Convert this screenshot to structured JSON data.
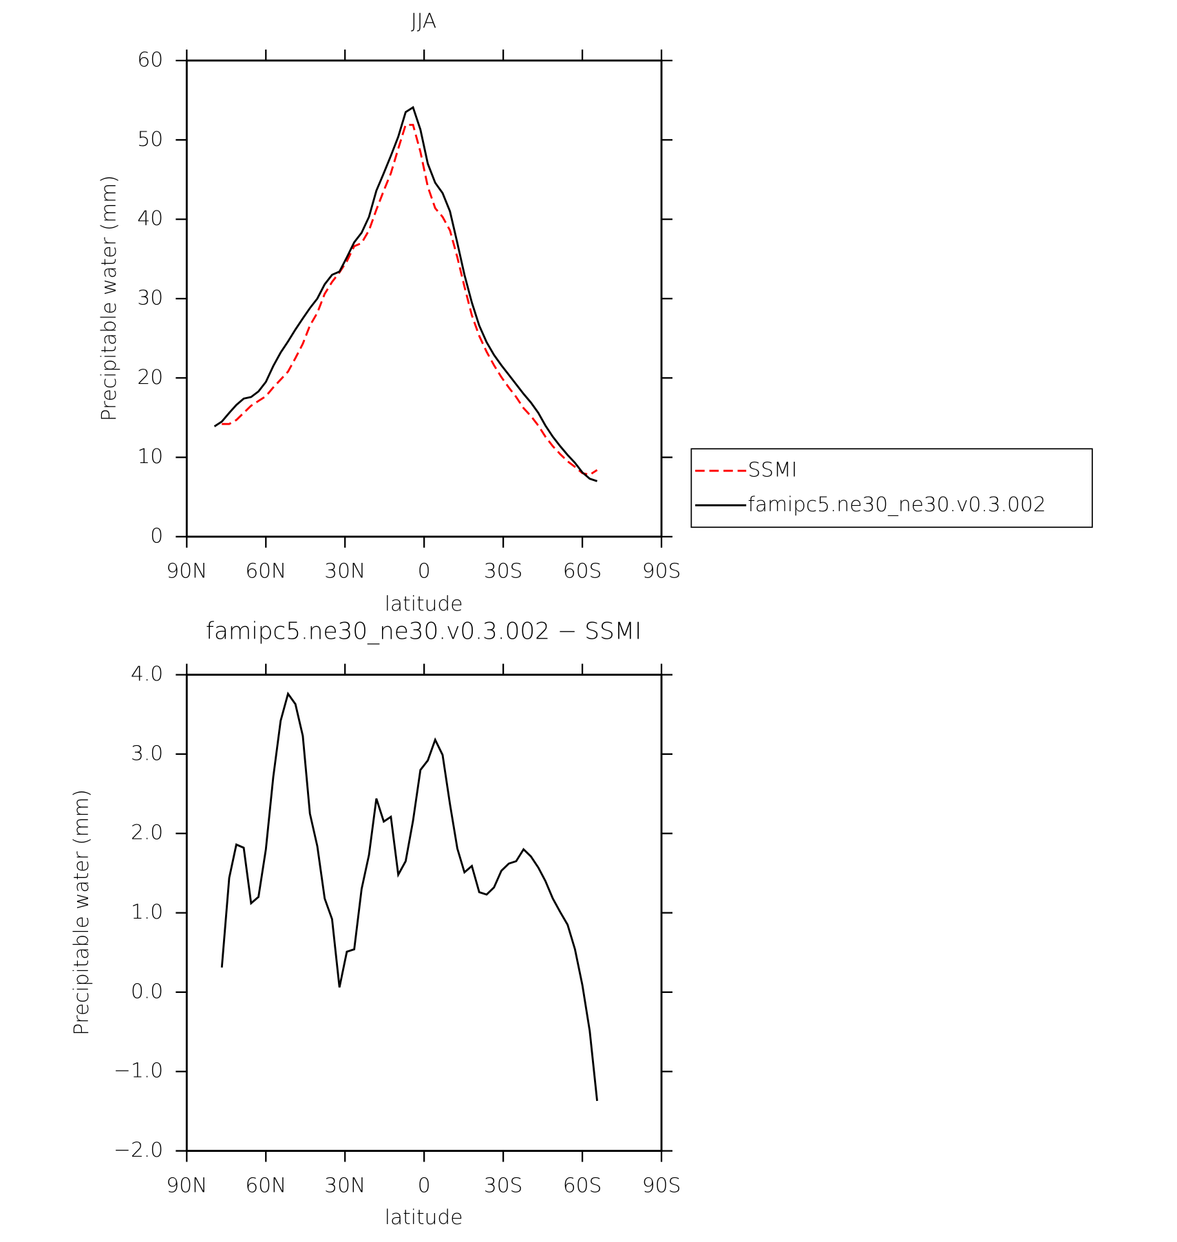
{
  "chart_data": [
    {
      "type": "line",
      "title": "JJA",
      "xlabel": "latitude",
      "ylabel": "Precipitable water (mm)",
      "x": [
        79.5,
        76.7,
        73.9,
        71.2,
        68.4,
        65.6,
        62.8,
        60.0,
        57.2,
        54.4,
        51.6,
        48.8,
        46.0,
        43.3,
        40.5,
        37.7,
        34.9,
        32.1,
        29.3,
        26.5,
        23.7,
        20.9,
        18.1,
        15.3,
        12.6,
        9.8,
        7.0,
        4.2,
        1.4,
        -1.4,
        -4.2,
        -7.0,
        -9.8,
        -12.6,
        -15.3,
        -18.1,
        -20.9,
        -23.7,
        -26.5,
        -29.3,
        -32.1,
        -34.9,
        -37.7,
        -40.5,
        -43.3,
        -46.0,
        -48.8,
        -51.6,
        -54.4,
        -57.2,
        -60.0,
        -62.8,
        -65.6
      ],
      "xlim": [
        90,
        -90
      ],
      "xticks": [
        {
          "value": 90,
          "label": "90N"
        },
        {
          "value": 60,
          "label": "60N"
        },
        {
          "value": 30,
          "label": "30N"
        },
        0,
        {
          "value": -30,
          "label": "30S"
        },
        {
          "value": -60,
          "label": "60S"
        },
        {
          "value": -90,
          "label": "90S"
        }
      ],
      "ylim": [
        0,
        60
      ],
      "yticks": [
        0,
        10,
        20,
        30,
        40,
        50,
        60
      ],
      "legend": "right",
      "series": [
        {
          "name": "SSMI",
          "color": "#ff0000",
          "linestyle": "dashed",
          "values": [
            null,
            14.2,
            14.2,
            14.7,
            15.6,
            16.5,
            17.1,
            17.7,
            18.8,
            19.8,
            20.8,
            22.5,
            24.3,
            26.6,
            28.2,
            30.6,
            32.1,
            33.3,
            34.7,
            36.6,
            37.0,
            38.6,
            41.2,
            43.6,
            45.8,
            48.9,
            51.9,
            51.9,
            48.5,
            44.1,
            41.4,
            40.3,
            38.6,
            35.2,
            31.5,
            27.9,
            25.3,
            23.3,
            21.6,
            20.1,
            18.8,
            17.6,
            16.2,
            15.2,
            14.0,
            12.6,
            11.4,
            10.4,
            9.5,
            8.8,
            8.0,
            7.8,
            8.4
          ]
        },
        {
          "name": "famipc5.ne30_ne30.v0.3.002",
          "color": "#000000",
          "linestyle": "solid",
          "values": [
            13.9,
            14.5,
            15.6,
            16.6,
            17.4,
            17.6,
            18.3,
            19.5,
            21.5,
            23.2,
            24.6,
            26.1,
            27.5,
            28.8,
            30.0,
            31.8,
            33.0,
            33.4,
            35.2,
            37.1,
            38.3,
            40.3,
            43.6,
            45.8,
            48.0,
            50.4,
            53.5,
            54.1,
            51.3,
            47.0,
            44.6,
            43.3,
            41.0,
            37.0,
            33.0,
            29.5,
            26.6,
            24.5,
            22.9,
            21.6,
            20.4,
            19.2,
            18.0,
            16.9,
            15.6,
            14.0,
            12.6,
            11.4,
            10.3,
            9.3,
            8.1,
            7.3,
            7.0
          ]
        }
      ]
    },
    {
      "type": "line",
      "title": "famipc5.ne30_ne30.v0.3.002 − SSMI",
      "xlabel": "latitude",
      "ylabel": "Precipitable water (mm)",
      "x": [
        76.7,
        73.9,
        71.2,
        68.4,
        65.6,
        62.8,
        60.0,
        57.2,
        54.4,
        51.6,
        48.8,
        46.0,
        43.3,
        40.5,
        37.7,
        34.9,
        32.1,
        29.3,
        26.5,
        23.7,
        20.9,
        18.1,
        15.3,
        12.6,
        9.8,
        7.0,
        4.2,
        1.4,
        -1.4,
        -4.2,
        -7.0,
        -9.8,
        -12.6,
        -15.3,
        -18.1,
        -20.9,
        -23.7,
        -26.5,
        -29.3,
        -32.1,
        -34.9,
        -37.7,
        -40.5,
        -43.3,
        -46.0,
        -48.8,
        -51.6,
        -54.4,
        -57.2,
        -60.0,
        -62.8,
        -65.6
      ],
      "xlim": [
        90,
        -90
      ],
      "xticks": [
        {
          "value": 90,
          "label": "90N"
        },
        {
          "value": 60,
          "label": "60N"
        },
        {
          "value": 30,
          "label": "30N"
        },
        0,
        {
          "value": -30,
          "label": "30S"
        },
        {
          "value": -60,
          "label": "60S"
        },
        {
          "value": -90,
          "label": "90S"
        }
      ],
      "ylim": [
        -2,
        4
      ],
      "yticks": [
        {
          "value": -2,
          "label": "−2.0"
        },
        {
          "value": -1,
          "label": "−1.0"
        },
        {
          "value": 0,
          "label": "0.0"
        },
        {
          "value": 1,
          "label": "1.0"
        },
        {
          "value": 2,
          "label": "2.0"
        },
        {
          "value": 3,
          "label": "3.0"
        },
        {
          "value": 4,
          "label": "4.0"
        }
      ],
      "color": "#000000",
      "values": [
        0.31,
        1.44,
        1.86,
        1.82,
        1.12,
        1.2,
        1.8,
        2.71,
        3.42,
        3.76,
        3.63,
        3.23,
        2.25,
        1.84,
        1.18,
        0.92,
        0.06,
        0.51,
        0.54,
        1.3,
        1.73,
        2.44,
        2.15,
        2.21,
        1.48,
        1.65,
        2.16,
        2.8,
        2.92,
        3.18,
        2.99,
        2.37,
        1.81,
        1.51,
        1.59,
        1.26,
        1.23,
        1.32,
        1.53,
        1.62,
        1.65,
        1.8,
        1.71,
        1.57,
        1.4,
        1.18,
        1.01,
        0.85,
        0.54,
        0.09,
        -0.49,
        -1.37
      ]
    }
  ]
}
